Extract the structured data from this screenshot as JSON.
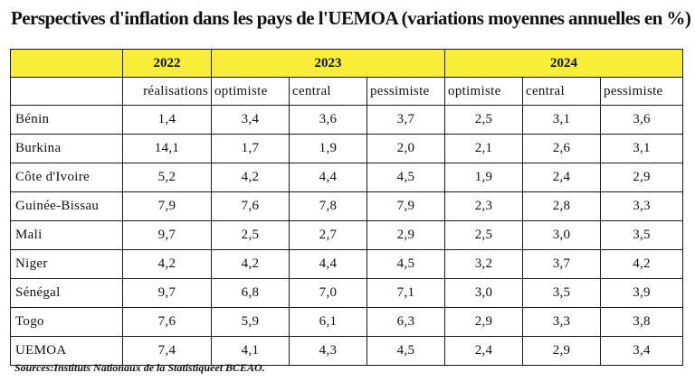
{
  "title": "Perspectives d'inflation dans les pays de l'UEMOA (variations moyennes annuelles en %)",
  "table": {
    "years": [
      "2022",
      "2023",
      "2024"
    ],
    "scenarios": [
      "réalisations",
      "optimiste",
      "central",
      "pessimiste",
      "optimiste",
      "central",
      "pessimiste"
    ],
    "rows": [
      {
        "country": "Bénin",
        "values": [
          "1,4",
          "3,4",
          "3,6",
          "3,7",
          "2,5",
          "3,1",
          "3,6"
        ]
      },
      {
        "country": "Burkina",
        "values": [
          "14,1",
          "1,7",
          "1,9",
          "2,0",
          "2,1",
          "2,6",
          "3,1"
        ]
      },
      {
        "country": "Côte d'Ivoire",
        "values": [
          "5,2",
          "4,2",
          "4,4",
          "4,5",
          "1,9",
          "2,4",
          "2,9"
        ]
      },
      {
        "country": "Guinée-Bissau",
        "values": [
          "7,9",
          "7,6",
          "7,8",
          "7,9",
          "2,3",
          "2,8",
          "3,3"
        ]
      },
      {
        "country": "Mali",
        "values": [
          "9,7",
          "2,5",
          "2,7",
          "2,9",
          "2,5",
          "3,0",
          "3,5"
        ]
      },
      {
        "country": "Niger",
        "values": [
          "4,2",
          "4,2",
          "4,4",
          "4,5",
          "3,2",
          "3,7",
          "4,2"
        ]
      },
      {
        "country": "Sénégal",
        "values": [
          "9,7",
          "6,8",
          "7,0",
          "7,1",
          "3,0",
          "3,5",
          "3,9"
        ]
      },
      {
        "country": "Togo",
        "values": [
          "7,6",
          "5,9",
          "6,1",
          "6,3",
          "2,9",
          "3,3",
          "3,8"
        ]
      },
      {
        "country": "UEMOA",
        "values": [
          "7,4",
          "4,1",
          "4,3",
          "4,5",
          "2,4",
          "2,9",
          "3,4"
        ]
      }
    ]
  },
  "source": "Sources:Instituts Nationaux de la Statistiqueet BCEAO.",
  "colors": {
    "header_background": "#f8ee3a",
    "border": "#1a1a1a"
  }
}
